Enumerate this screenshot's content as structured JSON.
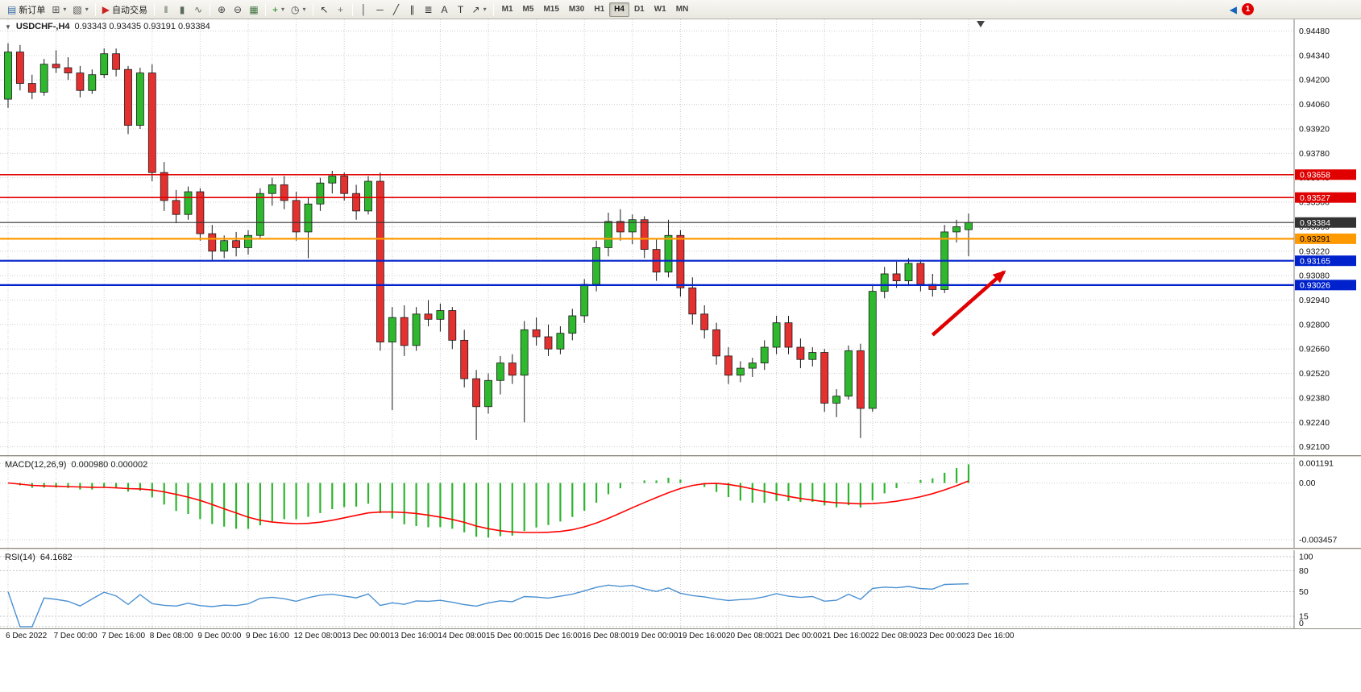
{
  "toolbar": {
    "icon_glyphs": {
      "page": "▤",
      "new-chart": "⊞",
      "profiles": "▧",
      "play": "▶",
      "bars": "‖",
      "candles": "▮",
      "line": "∿",
      "zoom-in": "⊕",
      "zoom-out": "⊖",
      "tiles": "▦",
      "indicators": "+",
      "clock": "◷",
      "cursor": "↖",
      "crosshair": "+",
      "vline": "│",
      "hline": "─",
      "trendline": "╱",
      "channel": "∥",
      "fibo": "≣",
      "text": "A",
      "label": "T",
      "arrows": "↗",
      "dropdown": "▾",
      "back": "◀"
    },
    "items": [
      {
        "name": "new-order",
        "icon": "page",
        "label": "新订单",
        "color": "#3a6ea5"
      },
      {
        "name": "new-chart",
        "icon": "new-chart",
        "color": "#555555",
        "dropdown": true
      },
      {
        "name": "profiles",
        "icon": "profiles",
        "color": "#555555",
        "dropdown": true
      },
      {
        "sep": true
      },
      {
        "name": "auto-trading",
        "icon": "play",
        "label": "自动交易",
        "color": "#cc2222"
      },
      {
        "sep": true
      },
      {
        "name": "bar-chart",
        "icon": "bars",
        "color": "#5a6a5a"
      },
      {
        "name": "candlestick-chart",
        "icon": "candles",
        "color": "#5a6a5a"
      },
      {
        "name": "line-chart",
        "icon": "line",
        "color": "#5a6a5a"
      },
      {
        "sep": true
      },
      {
        "name": "zoom-in",
        "icon": "zoom-in",
        "color": "#444444"
      },
      {
        "name": "zoom-out",
        "icon": "zoom-out",
        "color": "#444444"
      },
      {
        "name": "tile-windows",
        "icon": "tiles",
        "color": "#447744"
      },
      {
        "sep": true
      },
      {
        "name": "indicators",
        "icon": "indicators",
        "color": "#118811",
        "dropdown": true
      },
      {
        "name": "periods",
        "icon": "clock",
        "color": "#444444",
        "dropdown": true
      },
      {
        "sep": true
      },
      {
        "name": "cursor",
        "icon": "cursor",
        "color": "#333333"
      },
      {
        "name": "crosshair",
        "icon": "crosshair",
        "color": "#777777"
      },
      {
        "sep": true
      },
      {
        "name": "vertical-line",
        "icon": "vline",
        "color": "#333333"
      },
      {
        "name": "horizontal-line",
        "icon": "hline",
        "color": "#333333"
      },
      {
        "name": "trendline",
        "icon": "trendline",
        "color": "#333333"
      },
      {
        "name": "equidistant-channel",
        "icon": "channel",
        "color": "#333333"
      },
      {
        "name": "fibonacci",
        "icon": "fibo",
        "color": "#333333"
      },
      {
        "name": "text",
        "icon": "text",
        "color": "#333333"
      },
      {
        "name": "text-label",
        "icon": "label",
        "color": "#333333"
      },
      {
        "name": "arrows",
        "icon": "arrows",
        "color": "#333333",
        "dropdown": true
      },
      {
        "sep": true
      },
      {
        "timeframes": true
      }
    ],
    "timeframes": {
      "items": [
        "M1",
        "M5",
        "M15",
        "M30",
        "H1",
        "H4",
        "D1",
        "W1",
        "MN"
      ],
      "active": "H4"
    },
    "right_items": [
      {
        "name": "chart-back",
        "icon": "back",
        "color": "#1565c0"
      },
      {
        "name": "notifications",
        "badge": "1"
      }
    ]
  },
  "chart": {
    "header": {
      "expander_glyph": "▼",
      "symbol": "USDCHF-,H4",
      "ohlc": "0.93343 0.93435 0.93191 0.93384"
    },
    "price_axis": {
      "labels": [
        "0.94480",
        "0.94340",
        "0.94200",
        "0.94060",
        "0.93920",
        "0.93780",
        "0.93640",
        "0.93500",
        "0.93360",
        "0.93220",
        "0.93080",
        "0.92940",
        "0.92800",
        "0.92660",
        "0.92520",
        "0.92380",
        "0.92240",
        "0.92100"
      ],
      "scale_max": 0.9451,
      "scale_min": 0.9208
    },
    "price_lines": [
      {
        "price": 0.93658,
        "label": "0.93658",
        "color": "#e00000",
        "text": "#ffffff",
        "width": 1.6
      },
      {
        "price": 0.93527,
        "label": "0.93527",
        "color": "#e00000",
        "text": "#ffffff",
        "width": 1.6
      },
      {
        "price": 0.93384,
        "label": "0.93384",
        "color": "#333333",
        "text": "#ffffff",
        "width": 1.2,
        "current": true
      },
      {
        "price": 0.93291,
        "label": "0.93291",
        "color": "#ff9900",
        "text": "#000000",
        "width": 2.2
      },
      {
        "price": 0.93165,
        "label": "0.93165",
        "color": "#0022cc",
        "text": "#ffffff",
        "width": 2.2
      },
      {
        "price": 0.93026,
        "label": "0.93026",
        "color": "#0022cc",
        "text": "#ffffff",
        "width": 2.2
      }
    ],
    "time_labels": [
      "6 Dec 2022",
      "7 Dec 00:00",
      "7 Dec 16:00",
      "8 Dec 08:00",
      "9 Dec 00:00",
      "9 Dec 16:00",
      "12 Dec 08:00",
      "13 Dec 00:00",
      "13 Dec 16:00",
      "14 Dec 08:00",
      "15 Dec 00:00",
      "15 Dec 16:00",
      "16 Dec 08:00",
      "19 Dec 00:00",
      "19 Dec 16:00",
      "20 Dec 08:00",
      "21 Dec 00:00",
      "21 Dec 16:00",
      "22 Dec 08:00",
      "23 Dec 00:00",
      "23 Dec 16:00"
    ],
    "label_step": 4,
    "arrow": {
      "from_candle": 77,
      "from_price": 0.9274,
      "to_candle": 83.5,
      "to_price": 0.9312,
      "color": "#e00000"
    },
    "macd": {
      "title": "MACD(12,26,9)",
      "values": "0.000980 0.000002",
      "axis_labels": [
        "0.001191",
        "0.00",
        "-0.003457"
      ],
      "axis_values": [
        0.001191,
        0,
        -0.003457
      ],
      "scale_max": 0.00135,
      "scale_min": -0.00375
    },
    "rsi": {
      "title": "RSI(14)",
      "value": "64.1682",
      "axis_labels": [
        "100",
        "80",
        "50",
        "15",
        "0"
      ],
      "axis_values": [
        100,
        80,
        50,
        15,
        0
      ],
      "period": 14
    }
  },
  "chart_data": {
    "type": "candlestick",
    "symbol": "USDCHF",
    "timeframe": "H4",
    "title": "USDCHF-,H4 0.93343 0.93435 0.93191 0.93384",
    "ylim": [
      0.9208,
      0.9451
    ],
    "grid": true,
    "candles": [
      [
        0.9409,
        0.9441,
        0.9404,
        0.9436
      ],
      [
        0.9436,
        0.944,
        0.9414,
        0.9418
      ],
      [
        0.9418,
        0.9423,
        0.9409,
        0.9413
      ],
      [
        0.9413,
        0.9432,
        0.9411,
        0.9429
      ],
      [
        0.9429,
        0.9437,
        0.9424,
        0.9427
      ],
      [
        0.9427,
        0.9433,
        0.942,
        0.9424
      ],
      [
        0.9424,
        0.9428,
        0.941,
        0.9414
      ],
      [
        0.9414,
        0.9426,
        0.9412,
        0.9423
      ],
      [
        0.9423,
        0.9438,
        0.9421,
        0.9435
      ],
      [
        0.9435,
        0.9438,
        0.9422,
        0.9426
      ],
      [
        0.9426,
        0.9428,
        0.9389,
        0.9394
      ],
      [
        0.9394,
        0.9427,
        0.9392,
        0.9424
      ],
      [
        0.9424,
        0.9429,
        0.9362,
        0.9367
      ],
      [
        0.9367,
        0.9373,
        0.9345,
        0.9351
      ],
      [
        0.9351,
        0.9357,
        0.9338,
        0.9343
      ],
      [
        0.9343,
        0.9359,
        0.934,
        0.9356
      ],
      [
        0.9356,
        0.9358,
        0.9328,
        0.9332
      ],
      [
        0.9332,
        0.9337,
        0.9317,
        0.9322
      ],
      [
        0.9322,
        0.9331,
        0.9318,
        0.9328
      ],
      [
        0.9328,
        0.9333,
        0.9319,
        0.9324
      ],
      [
        0.9324,
        0.9334,
        0.932,
        0.9331
      ],
      [
        0.9331,
        0.9358,
        0.9329,
        0.9355
      ],
      [
        0.9355,
        0.9364,
        0.9348,
        0.936
      ],
      [
        0.936,
        0.9365,
        0.9346,
        0.9351
      ],
      [
        0.9351,
        0.9356,
        0.9328,
        0.9333
      ],
      [
        0.9333,
        0.9353,
        0.9318,
        0.9349
      ],
      [
        0.9349,
        0.9364,
        0.9345,
        0.9361
      ],
      [
        0.9361,
        0.9368,
        0.9355,
        0.9365
      ],
      [
        0.9365,
        0.9367,
        0.9351,
        0.9355
      ],
      [
        0.9355,
        0.936,
        0.934,
        0.9345
      ],
      [
        0.9345,
        0.9365,
        0.9343,
        0.9362
      ],
      [
        0.9362,
        0.9367,
        0.9265,
        0.927
      ],
      [
        0.927,
        0.929,
        0.9231,
        0.9284
      ],
      [
        0.9284,
        0.9291,
        0.9262,
        0.9268
      ],
      [
        0.9268,
        0.929,
        0.9265,
        0.9286
      ],
      [
        0.9286,
        0.9294,
        0.9279,
        0.9283
      ],
      [
        0.9283,
        0.9292,
        0.9276,
        0.9288
      ],
      [
        0.9288,
        0.929,
        0.9266,
        0.9271
      ],
      [
        0.9271,
        0.9277,
        0.9244,
        0.9249
      ],
      [
        0.9249,
        0.9254,
        0.9214,
        0.9233
      ],
      [
        0.9233,
        0.9252,
        0.9229,
        0.9248
      ],
      [
        0.9248,
        0.9262,
        0.924,
        0.9258
      ],
      [
        0.9258,
        0.9263,
        0.9246,
        0.9251
      ],
      [
        0.9251,
        0.9282,
        0.9224,
        0.9277
      ],
      [
        0.9277,
        0.9284,
        0.9268,
        0.9273
      ],
      [
        0.9273,
        0.928,
        0.9262,
        0.9266
      ],
      [
        0.9266,
        0.9279,
        0.9263,
        0.9275
      ],
      [
        0.9275,
        0.9289,
        0.9271,
        0.9285
      ],
      [
        0.9285,
        0.9306,
        0.9281,
        0.9303
      ],
      [
        0.9303,
        0.9328,
        0.9299,
        0.9324
      ],
      [
        0.9324,
        0.9344,
        0.9319,
        0.9339
      ],
      [
        0.9339,
        0.9346,
        0.9328,
        0.9333
      ],
      [
        0.9333,
        0.9343,
        0.9326,
        0.934
      ],
      [
        0.934,
        0.9342,
        0.9318,
        0.9323
      ],
      [
        0.9323,
        0.9329,
        0.9305,
        0.931
      ],
      [
        0.931,
        0.934,
        0.9307,
        0.9331
      ],
      [
        0.9331,
        0.9334,
        0.9296,
        0.9301
      ],
      [
        0.9301,
        0.9307,
        0.928,
        0.9286
      ],
      [
        0.9286,
        0.9291,
        0.9272,
        0.9277
      ],
      [
        0.9277,
        0.9281,
        0.9257,
        0.9262
      ],
      [
        0.9262,
        0.9267,
        0.9246,
        0.9251
      ],
      [
        0.9251,
        0.9259,
        0.9247,
        0.9255
      ],
      [
        0.9255,
        0.9261,
        0.925,
        0.9258
      ],
      [
        0.9258,
        0.9271,
        0.9254,
        0.9267
      ],
      [
        0.9267,
        0.9285,
        0.9263,
        0.9281
      ],
      [
        0.9281,
        0.9285,
        0.9263,
        0.9267
      ],
      [
        0.9267,
        0.9272,
        0.9255,
        0.926
      ],
      [
        0.926,
        0.9267,
        0.9256,
        0.9264
      ],
      [
        0.9264,
        0.9266,
        0.923,
        0.9235
      ],
      [
        0.9235,
        0.9243,
        0.9227,
        0.9239
      ],
      [
        0.9239,
        0.9268,
        0.9237,
        0.9265
      ],
      [
        0.9265,
        0.9269,
        0.9215,
        0.9232
      ],
      [
        0.9232,
        0.9303,
        0.923,
        0.9299
      ],
      [
        0.9299,
        0.9313,
        0.9295,
        0.9309
      ],
      [
        0.9309,
        0.9316,
        0.9301,
        0.9305
      ],
      [
        0.9305,
        0.9318,
        0.9302,
        0.9315
      ],
      [
        0.9315,
        0.9317,
        0.9299,
        0.9303
      ],
      [
        0.9303,
        0.9309,
        0.9296,
        0.93
      ],
      [
        0.93,
        0.9337,
        0.9298,
        0.9333
      ],
      [
        0.9333,
        0.934,
        0.9327,
        0.9336
      ],
      [
        0.93343,
        0.93435,
        0.93191,
        0.93384
      ]
    ],
    "colors": {
      "up": "#2eb82e",
      "down": "#e53030",
      "outline": "#1a1a1a",
      "macd_histogram": "#2db52d",
      "macd_signal": "#ff0000",
      "rsi_line": "#4a90d2",
      "grid": "#cdcdcd"
    },
    "indicators": {
      "macd": {
        "fast": 12,
        "slow": 26,
        "signal": 9,
        "current_main": 0.00098,
        "current_signal": 2e-06
      },
      "rsi": {
        "period": 14,
        "current": 64.1682
      }
    }
  }
}
